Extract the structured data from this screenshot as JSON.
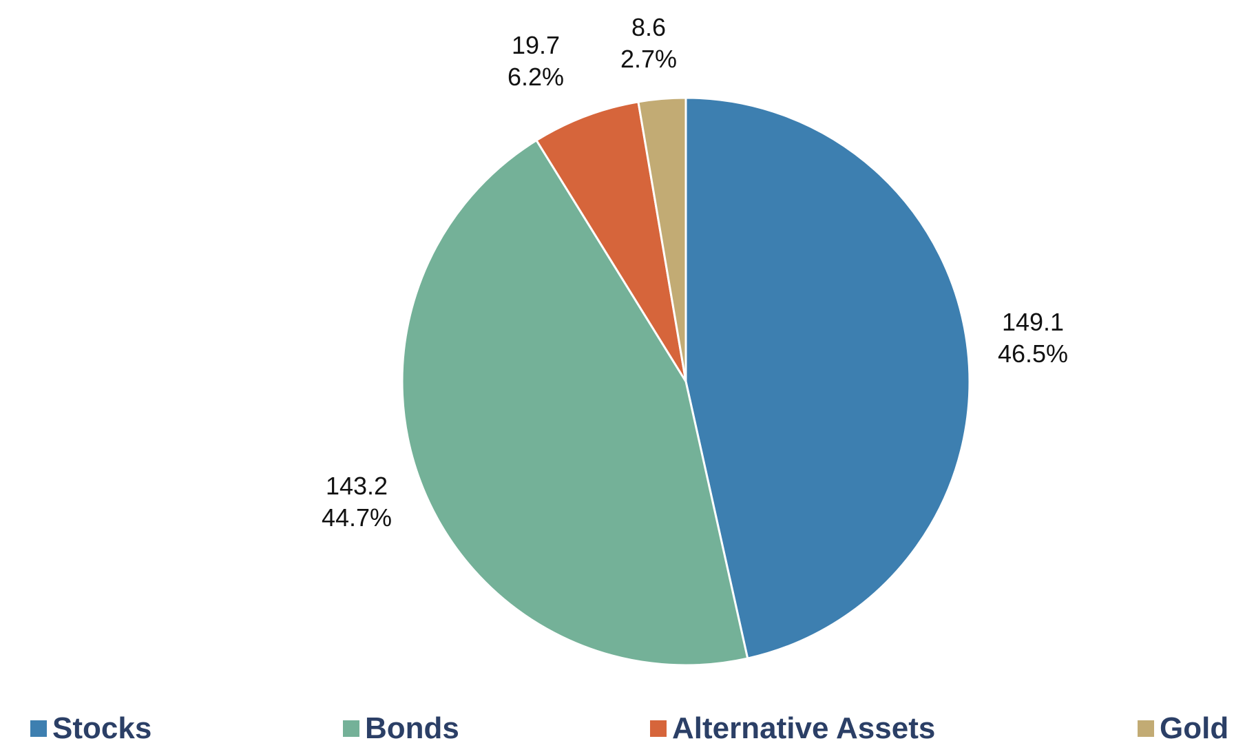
{
  "chart_data": {
    "type": "pie",
    "title": "",
    "start_angle_deg": 0,
    "direction": "clockwise",
    "slices": [
      {
        "name": "Stocks",
        "value": 149.1,
        "percent_label": "46.5%",
        "value_label": "149.1",
        "color": "#3d7fb0"
      },
      {
        "name": "Bonds",
        "value": 143.2,
        "percent_label": "44.7%",
        "value_label": "143.2",
        "color": "#74b198"
      },
      {
        "name": "Alternative Assets",
        "value": 19.7,
        "percent_label": "6.2%",
        "value_label": "19.7",
        "color": "#d6653b"
      },
      {
        "name": "Gold",
        "value": 8.6,
        "percent_label": "2.7%",
        "value_label": "8.6",
        "color": "#c2ab74"
      }
    ],
    "legend_position": "bottom"
  },
  "legend": {
    "items": [
      {
        "label": "Stocks",
        "color": "#3d7fb0"
      },
      {
        "label": "Bonds",
        "color": "#74b198"
      },
      {
        "label": "Alternative Assets",
        "color": "#d6653b"
      },
      {
        "label": "Gold",
        "color": "#c2ab74"
      }
    ]
  }
}
